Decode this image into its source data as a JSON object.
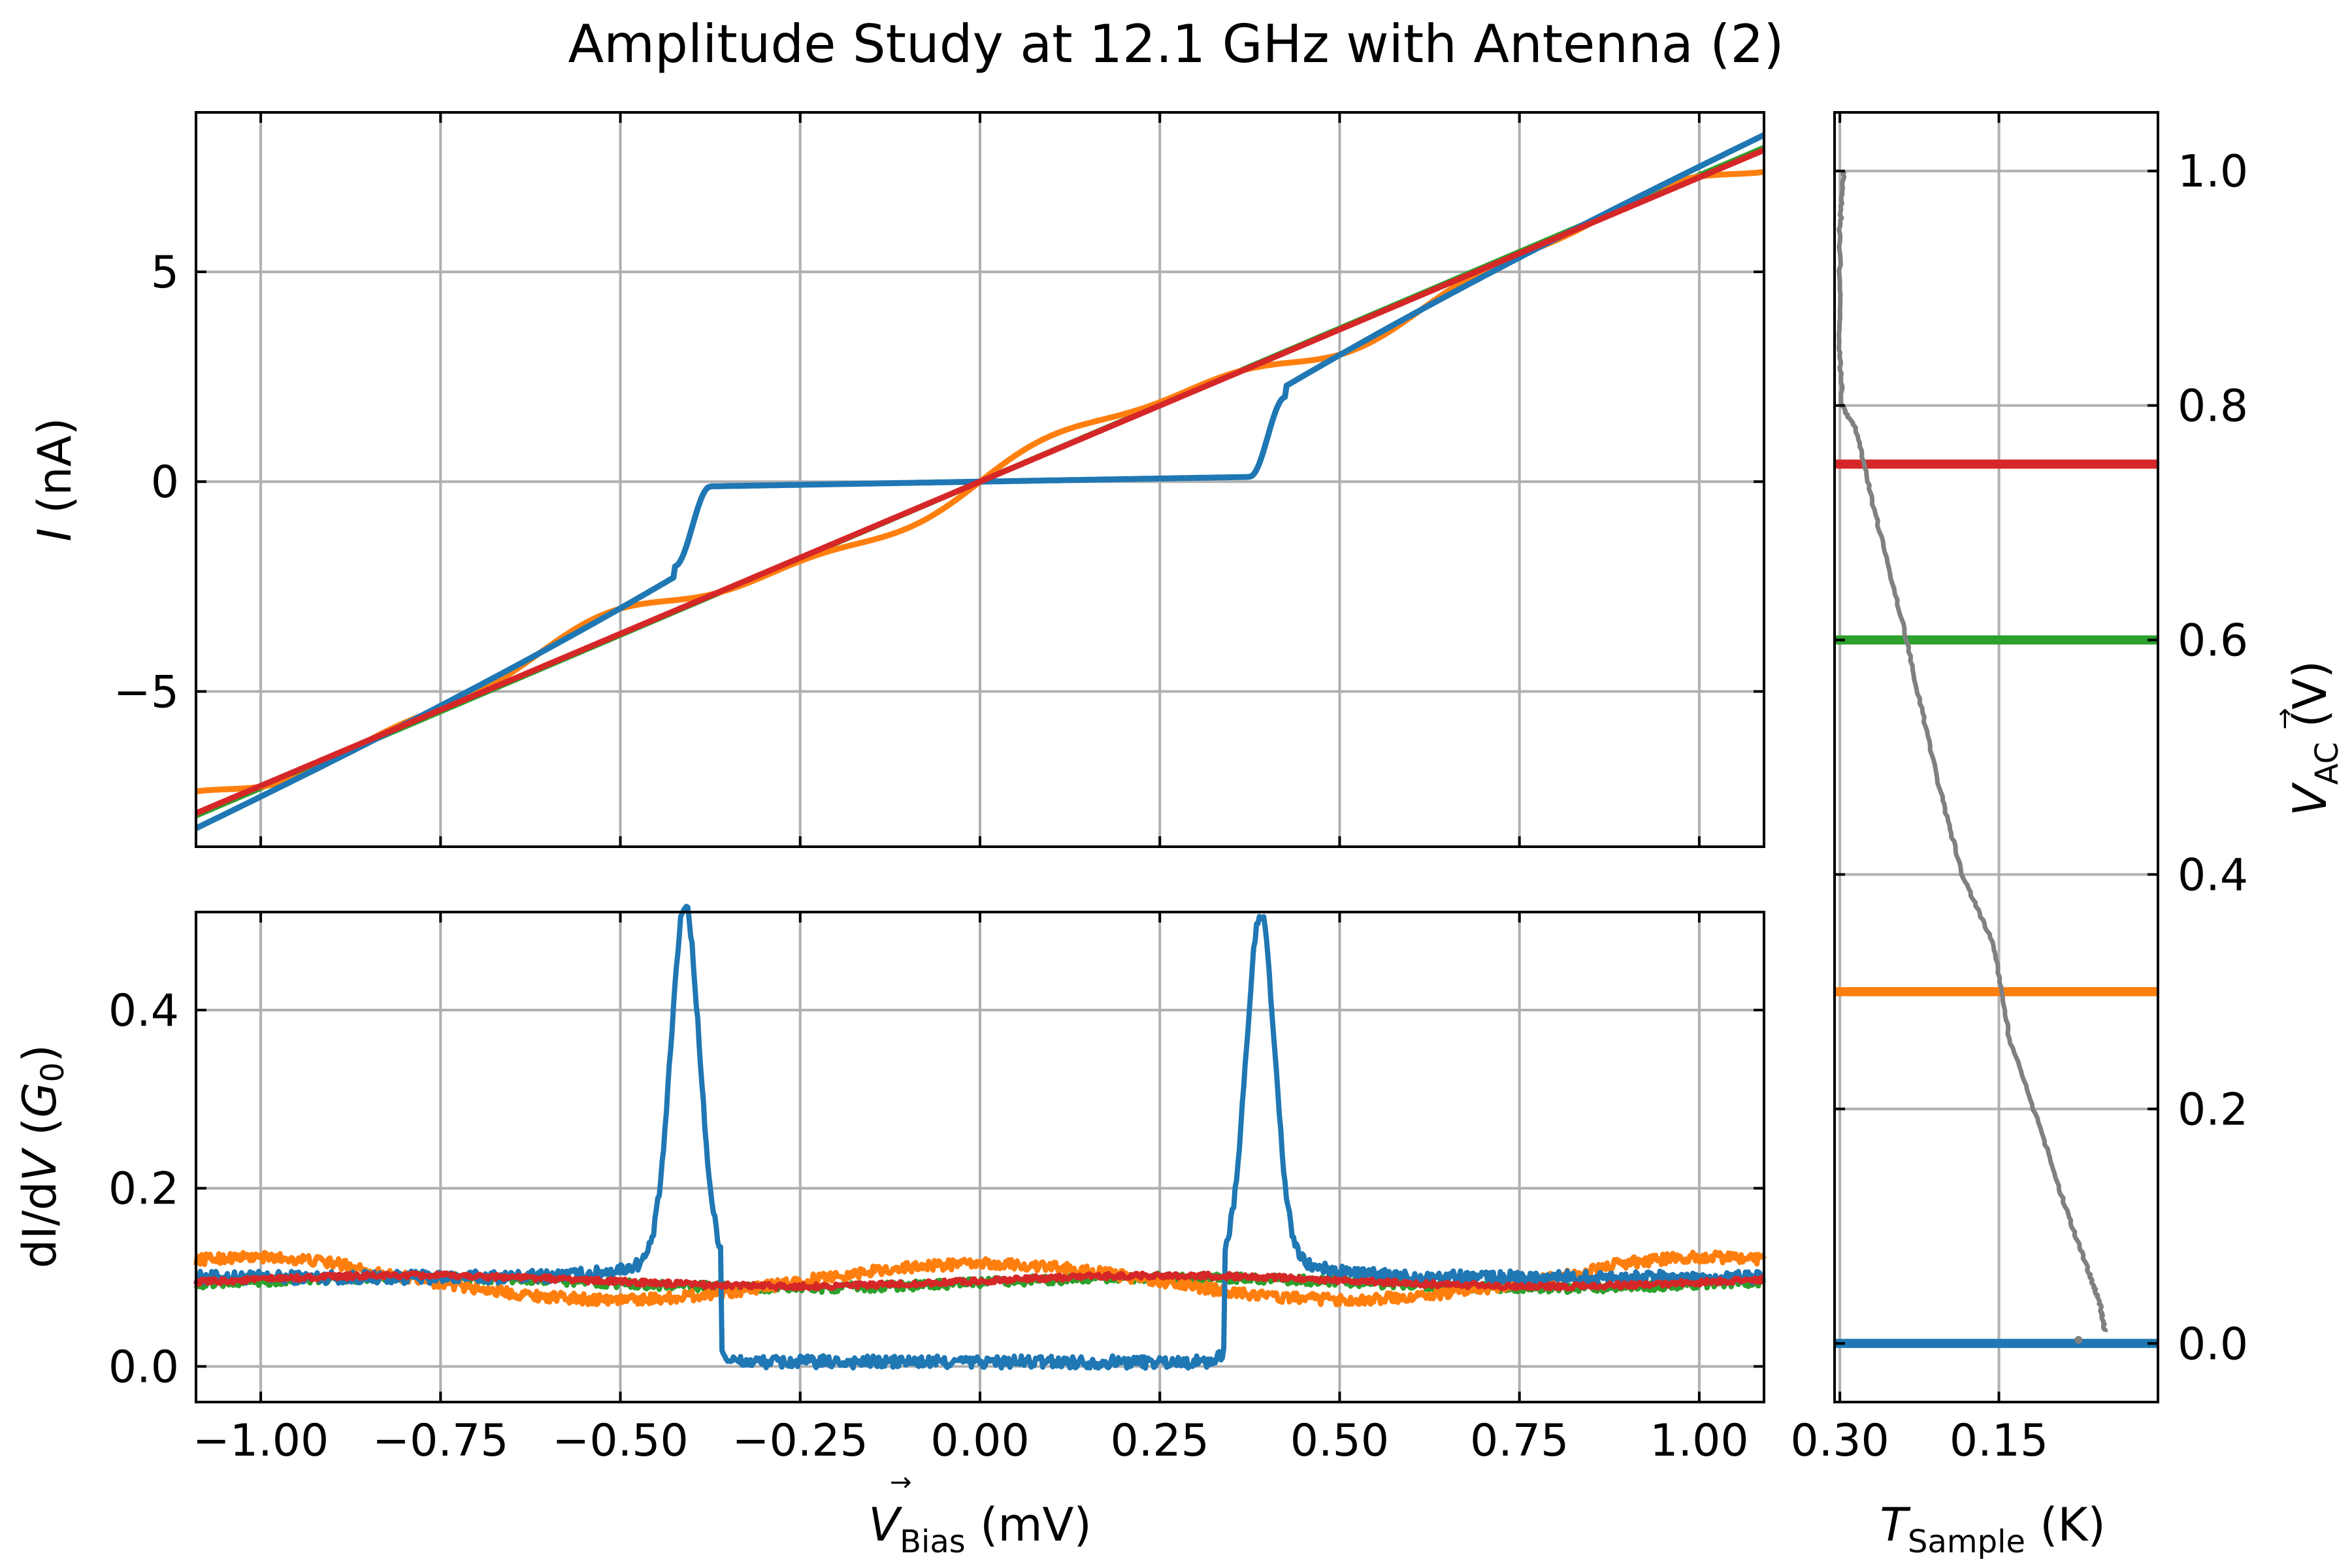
{
  "figure": {
    "title": "Amplitude Study at 12.1 GHz with Antenna (2)",
    "x_label": {
      "symbol": "V",
      "sub": "Bias",
      "arrow": "→",
      "unit": " (mV)"
    },
    "iv_y_label": {
      "symbol": "I",
      "unit": " (nA)"
    },
    "didv_y_label": {
      "prefix": "dI/d",
      "symbol": "V",
      "open": " (",
      "g": "G",
      "g_sub": "0",
      "close": ")"
    },
    "temp_x_label": {
      "symbol": "T",
      "sub": "Sample",
      "unit": " (K)"
    },
    "vac_y_label": {
      "symbol": "V",
      "sub": "AC",
      "arrow": "→",
      "unit": " (V)"
    }
  },
  "colors": {
    "series": [
      "#1f77b4",
      "#ff7f0e",
      "#2ca02c",
      "#d62728"
    ],
    "temperature_trace": "#808080",
    "grid": "#b0b0b0"
  },
  "chart_data": [
    {
      "id": "iv",
      "type": "line",
      "ylabel": "I (nA)",
      "xlim": [
        -1.09,
        1.09
      ],
      "ylim": [
        -8.7,
        8.8
      ],
      "xticks": [
        -1.0,
        -0.75,
        -0.5,
        -0.25,
        0.0,
        0.25,
        0.5,
        0.75,
        1.0
      ],
      "yticks": [
        -5,
        0,
        5
      ],
      "ytick_labels": [
        "−5",
        "0",
        "5"
      ],
      "grid": true,
      "series": [
        {
          "color_index": 0,
          "kind": "gap",
          "gap": 0.4,
          "width": 0.025,
          "slope_outer": 7.8,
          "sub_gap_slope": 0.3,
          "ends": [
            -7.5,
            7.7
          ],
          "edge_hop": 2.0
        },
        {
          "color_index": 1,
          "kind": "wavy",
          "slope": 7.0,
          "wiggle": 0.35,
          "ends": [
            -7.45,
            7.5
          ]
        },
        {
          "color_index": 2,
          "kind": "linear",
          "slope": 7.3,
          "ends": [
            -7.4,
            7.8
          ]
        },
        {
          "color_index": 3,
          "kind": "linear",
          "slope": 7.25,
          "ends": [
            -7.9,
            7.9
          ]
        }
      ]
    },
    {
      "id": "didv",
      "type": "line",
      "xlabel": "V_Bias (mV)",
      "ylabel": "dI/dV (G0)",
      "xlim": [
        -1.09,
        1.09
      ],
      "ylim": [
        -0.04,
        0.51
      ],
      "xticks": [
        -1.0,
        -0.75,
        -0.5,
        -0.25,
        0.0,
        0.25,
        0.5,
        0.75,
        1.0
      ],
      "xtick_labels": [
        "−1.00",
        "−0.75",
        "−0.50",
        "−0.25",
        "0.00",
        "0.25",
        "0.50",
        "0.75",
        "1.00"
      ],
      "yticks": [
        0.0,
        0.2,
        0.4
      ],
      "ytick_labels": [
        "0.0",
        "0.2",
        "0.4"
      ],
      "grid": true,
      "series": [
        {
          "color_index": 0,
          "kind": "gap",
          "gap_neg": -0.41,
          "gap_pos": 0.39,
          "peak_neg": 0.48,
          "peak_pos": 0.47,
          "outer": 0.1,
          "inner": 0.005,
          "noise": 0.007
        },
        {
          "color_index": 1,
          "kind": "wavy",
          "base": 0.095,
          "wiggle": 0.025,
          "noise": 0.006
        },
        {
          "color_index": 2,
          "kind": "flat",
          "base": 0.094,
          "noise": 0.005
        },
        {
          "color_index": 3,
          "kind": "flat",
          "base": 0.096,
          "noise": 0.003
        }
      ]
    },
    {
      "id": "temperature",
      "type": "scatter",
      "xlabel": "T_Sample (K)",
      "ylabel": "V_AC (V)",
      "xlim": [
        0.305,
        0.0
      ],
      "ylim": [
        -0.05,
        1.05
      ],
      "xticks": [
        0.3,
        0.15
      ],
      "xtick_labels": [
        "0.30",
        "0.15"
      ],
      "yticks": [
        0.0,
        0.2,
        0.4,
        0.6,
        0.8,
        1.0
      ],
      "ytick_labels": [
        "0.0",
        "0.2",
        "0.4",
        "0.6",
        "0.8",
        "1.0"
      ],
      "grid": true,
      "trace": [
        [
          0.296,
          1.0
        ],
        [
          0.3,
          0.95
        ],
        [
          0.3,
          0.85
        ],
        [
          0.298,
          0.8
        ],
        [
          0.285,
          0.78
        ],
        [
          0.27,
          0.72
        ],
        [
          0.245,
          0.63
        ],
        [
          0.225,
          0.55
        ],
        [
          0.205,
          0.47
        ],
        [
          0.185,
          0.4
        ],
        [
          0.155,
          0.34
        ],
        [
          0.14,
          0.26
        ],
        [
          0.11,
          0.18
        ],
        [
          0.085,
          0.11
        ],
        [
          0.065,
          0.06
        ],
        [
          0.055,
          0.035
        ],
        [
          0.05,
          0.01
        ]
      ],
      "trace_tail": [
        0.075,
        0.003
      ],
      "levels": [
        {
          "value": 0.0,
          "color_index": 0
        },
        {
          "value": 0.3,
          "color_index": 1
        },
        {
          "value": 0.6,
          "color_index": 2
        },
        {
          "value": 0.75,
          "color_index": 3
        }
      ]
    }
  ]
}
